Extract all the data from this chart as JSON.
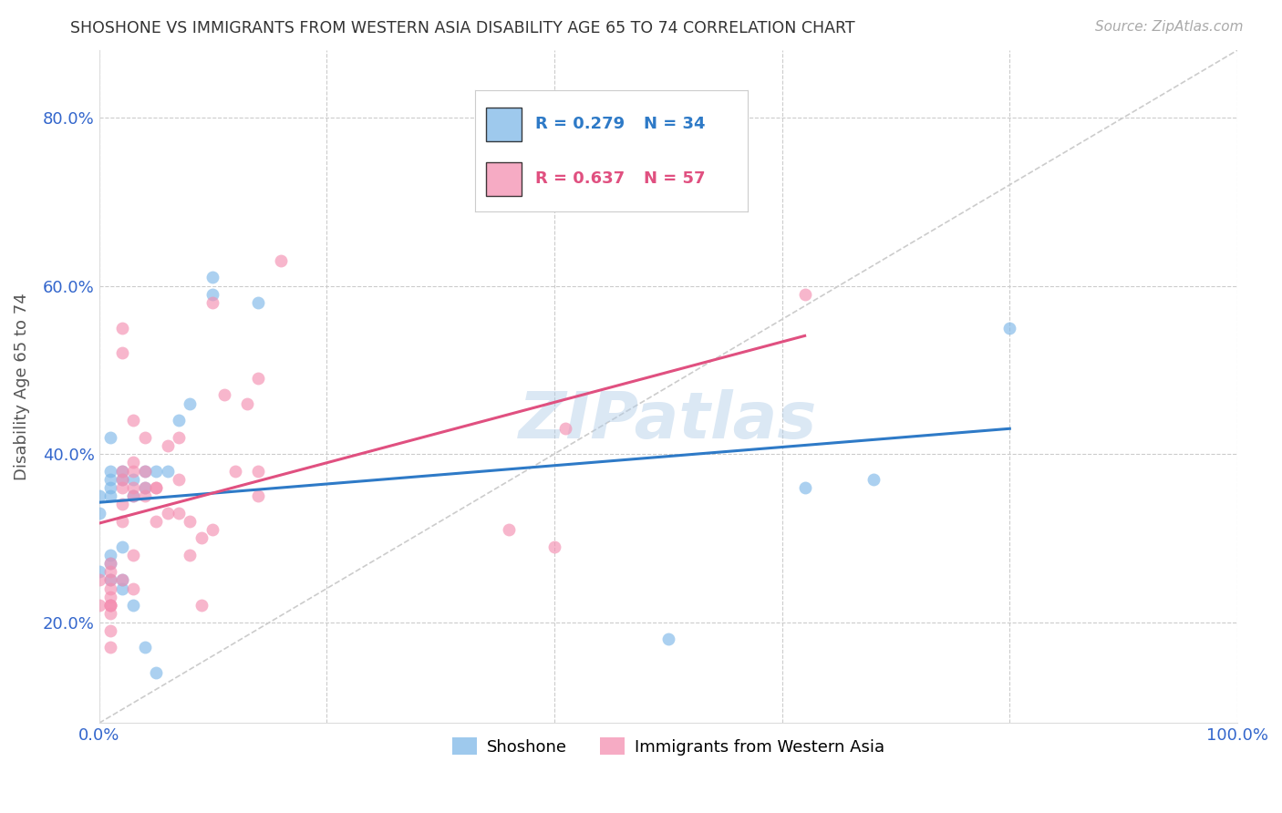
{
  "title": "SHOSHONE VS IMMIGRANTS FROM WESTERN ASIA DISABILITY AGE 65 TO 74 CORRELATION CHART",
  "source": "Source: ZipAtlas.com",
  "ylabel": "Disability Age 65 to 74",
  "xlabel": "",
  "xlim": [
    0.0,
    1.0
  ],
  "ylim": [
    0.08,
    0.88
  ],
  "xticks": [
    0.0,
    0.2,
    0.4,
    0.6,
    0.8,
    1.0
  ],
  "yticks": [
    0.2,
    0.4,
    0.6,
    0.8
  ],
  "xticklabels": [
    "0.0%",
    "",
    "",
    "",
    "",
    "100.0%"
  ],
  "yticklabels": [
    "20.0%",
    "40.0%",
    "60.0%",
    "80.0%"
  ],
  "shoshone_R": 0.279,
  "shoshone_N": 34,
  "immigrants_R": 0.637,
  "immigrants_N": 57,
  "shoshone_color": "#7EB8E8",
  "immigrants_color": "#F48FB1",
  "trend_shoshone_color": "#2E7AC7",
  "trend_immigrants_color": "#E05080",
  "diagonal_color": "#CCCCCC",
  "watermark": "ZIPatlas",
  "shoshone_x": [
    0.0,
    0.0,
    0.0,
    0.01,
    0.01,
    0.01,
    0.01,
    0.01,
    0.01,
    0.01,
    0.01,
    0.02,
    0.02,
    0.02,
    0.02,
    0.02,
    0.03,
    0.03,
    0.03,
    0.04,
    0.04,
    0.04,
    0.05,
    0.05,
    0.06,
    0.07,
    0.08,
    0.1,
    0.1,
    0.14,
    0.5,
    0.62,
    0.68,
    0.8
  ],
  "shoshone_y": [
    0.33,
    0.35,
    0.26,
    0.42,
    0.38,
    0.37,
    0.36,
    0.35,
    0.28,
    0.27,
    0.25,
    0.38,
    0.37,
    0.29,
    0.25,
    0.24,
    0.37,
    0.35,
    0.22,
    0.38,
    0.36,
    0.17,
    0.38,
    0.14,
    0.38,
    0.44,
    0.46,
    0.59,
    0.61,
    0.58,
    0.18,
    0.36,
    0.37,
    0.55
  ],
  "immigrants_x": [
    0.0,
    0.0,
    0.01,
    0.01,
    0.01,
    0.01,
    0.01,
    0.01,
    0.01,
    0.01,
    0.01,
    0.01,
    0.01,
    0.02,
    0.02,
    0.02,
    0.02,
    0.02,
    0.02,
    0.02,
    0.02,
    0.03,
    0.03,
    0.03,
    0.03,
    0.03,
    0.03,
    0.03,
    0.04,
    0.04,
    0.04,
    0.04,
    0.05,
    0.05,
    0.05,
    0.06,
    0.06,
    0.07,
    0.07,
    0.07,
    0.08,
    0.08,
    0.09,
    0.09,
    0.1,
    0.1,
    0.11,
    0.12,
    0.13,
    0.14,
    0.14,
    0.14,
    0.16,
    0.36,
    0.4,
    0.41,
    0.62
  ],
  "immigrants_y": [
    0.25,
    0.22,
    0.27,
    0.26,
    0.25,
    0.24,
    0.23,
    0.22,
    0.22,
    0.22,
    0.21,
    0.19,
    0.17,
    0.55,
    0.52,
    0.38,
    0.37,
    0.36,
    0.34,
    0.32,
    0.25,
    0.44,
    0.39,
    0.38,
    0.36,
    0.35,
    0.28,
    0.24,
    0.42,
    0.38,
    0.36,
    0.35,
    0.36,
    0.36,
    0.32,
    0.41,
    0.33,
    0.42,
    0.37,
    0.33,
    0.32,
    0.28,
    0.3,
    0.22,
    0.58,
    0.31,
    0.47,
    0.38,
    0.46,
    0.49,
    0.38,
    0.35,
    0.63,
    0.31,
    0.29,
    0.43,
    0.59
  ]
}
